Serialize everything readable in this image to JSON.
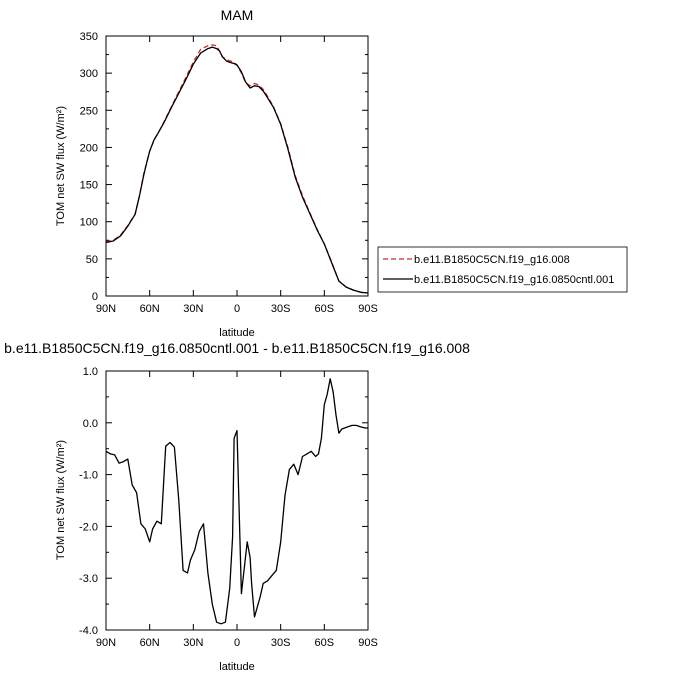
{
  "chart_data": [
    {
      "type": "line",
      "title": "MAM",
      "xlabel": "latitude",
      "ylabel": "TOM net SW flux (W/m²)",
      "x_ticks": [
        "90N",
        "60N",
        "30N",
        "0",
        "30S",
        "60S",
        "90S"
      ],
      "y_ticks": [
        "0",
        "50",
        "100",
        "150",
        "200",
        "250",
        "300",
        "350"
      ],
      "xlim": [
        90,
        -90
      ],
      "ylim": [
        0,
        350
      ],
      "grid": false,
      "legend_position": "right",
      "legend": [
        {
          "label": "b.e11.B1850C5CN.f19_g16.008",
          "style": "dashed",
          "color": "#d62728"
        },
        {
          "label": "b.e11.B1850C5CN.f19_g16.0850cntl.001",
          "style": "solid",
          "color": "#000000"
        }
      ],
      "x": [
        90,
        85,
        80,
        75,
        70,
        67,
        64,
        62,
        60,
        57,
        54,
        50,
        45,
        40,
        35,
        30,
        25,
        20,
        17,
        14,
        12,
        10,
        7,
        4,
        2,
        0,
        -3,
        -6,
        -9,
        -12,
        -15,
        -18,
        -20,
        -25,
        -30,
        -35,
        -40,
        -45,
        -50,
        -55,
        -60,
        -65,
        -70,
        -75,
        -80,
        -85,
        -90
      ],
      "series": [
        {
          "name": "b.e11.B1850C5CN.f19_g16.008",
          "color": "#d62728",
          "style": "dashed",
          "values": [
            73,
            75,
            82,
            95,
            110,
            135,
            165,
            180,
            195,
            210,
            220,
            235,
            255,
            275,
            295,
            315,
            332,
            337,
            338,
            337,
            330,
            322,
            318,
            316,
            314,
            311,
            300,
            287,
            283,
            286,
            284,
            278,
            272,
            255,
            232,
            200,
            162,
            135,
            112,
            90,
            70,
            46,
            20,
            12,
            8,
            5,
            4
          ]
        },
        {
          "name": "b.e11.B1850C5CN.f19_g16.0850cntl.001",
          "color": "#000000",
          "style": "solid",
          "values": [
            72,
            74,
            81,
            94,
            110,
            135,
            163,
            180,
            195,
            210,
            220,
            234,
            254,
            273,
            292,
            312,
            327,
            333,
            335,
            333,
            330,
            322,
            316,
            314,
            313,
            311,
            302,
            288,
            280,
            283,
            282,
            276,
            270,
            254,
            231,
            198,
            160,
            133,
            111,
            89,
            70,
            45,
            20,
            12,
            8,
            5,
            4
          ]
        }
      ]
    },
    {
      "type": "line",
      "title": "b.e11.B1850C5CN.f19_g16.0850cntl.001 - b.e11.B1850C5CN.f19_g16.008",
      "xlabel": "latitude",
      "ylabel": "TOM net SW flux (W/m²)",
      "x_ticks": [
        "90N",
        "60N",
        "30N",
        "0",
        "30S",
        "60S",
        "90S"
      ],
      "y_ticks": [
        "1.0",
        "0.0",
        "-1.0",
        "-2.0",
        "-3.0",
        "-4.0"
      ],
      "xlim": [
        90,
        -90
      ],
      "ylim": [
        -4.0,
        1.0
      ],
      "grid": false,
      "x": [
        90,
        87,
        84,
        81,
        78,
        75,
        72,
        69,
        66,
        63,
        60,
        58,
        55,
        52,
        49,
        46,
        43,
        40,
        37,
        34,
        32,
        29,
        26,
        23,
        20,
        17,
        14,
        11,
        8,
        5,
        3,
        2,
        0,
        -3,
        -5,
        -7,
        -9,
        -10,
        -12,
        -14,
        -16,
        -18,
        -21,
        -24,
        -27,
        -30,
        -33,
        -36,
        -39,
        -42,
        -45,
        -48,
        -51,
        -54,
        -56,
        -58,
        -60,
        -62,
        -64,
        -66,
        -68,
        -70,
        -72,
        -74,
        -76,
        -79,
        -82,
        -85,
        -88,
        -90
      ],
      "values": [
        -0.55,
        -0.6,
        -0.62,
        -0.78,
        -0.75,
        -0.7,
        -1.2,
        -1.35,
        -1.95,
        -2.05,
        -2.3,
        -2.05,
        -1.9,
        -1.95,
        -0.45,
        -0.38,
        -0.47,
        -1.5,
        -2.85,
        -2.9,
        -2.65,
        -2.45,
        -2.1,
        -1.95,
        -2.9,
        -3.5,
        -3.85,
        -3.88,
        -3.85,
        -3.2,
        -2.2,
        -0.3,
        -0.15,
        -3.3,
        -2.8,
        -2.3,
        -2.6,
        -3.1,
        -3.75,
        -3.55,
        -3.35,
        -3.1,
        -3.05,
        -2.95,
        -2.85,
        -2.3,
        -1.4,
        -0.9,
        -0.8,
        -1.0,
        -0.65,
        -0.6,
        -0.55,
        -0.65,
        -0.6,
        -0.3,
        0.35,
        0.55,
        0.85,
        0.6,
        0.15,
        -0.2,
        -0.12,
        -0.1,
        -0.08,
        -0.05,
        -0.05,
        -0.08,
        -0.1,
        -0.1
      ]
    }
  ]
}
